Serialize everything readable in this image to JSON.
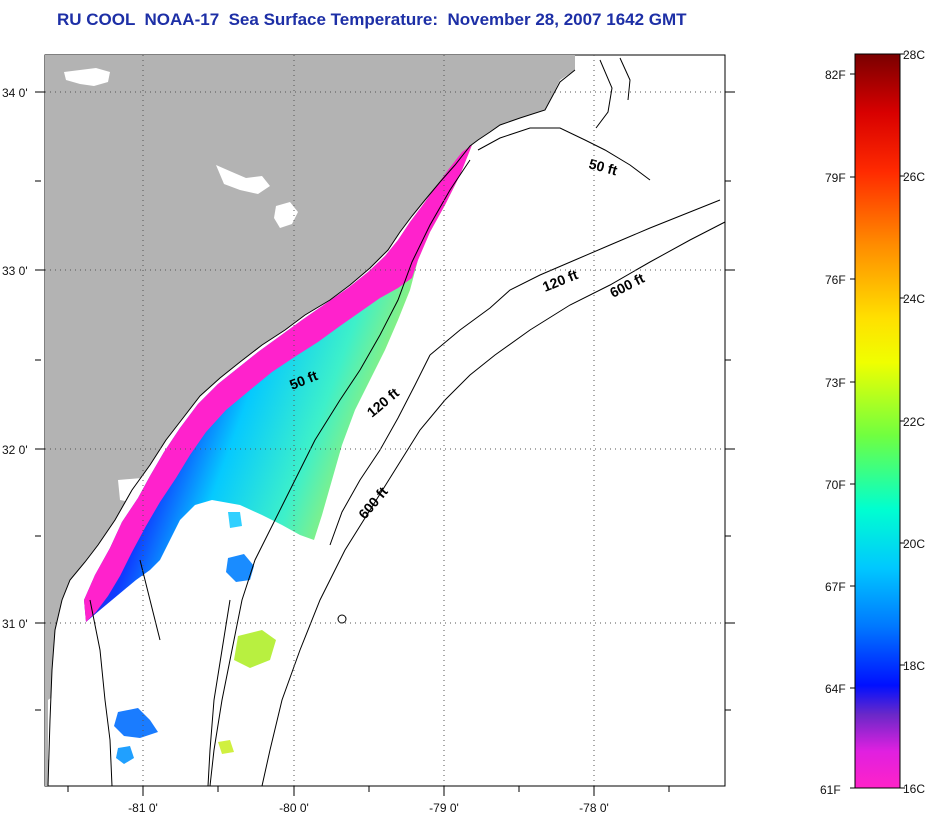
{
  "title": "RU COOL  NOAA-17  Sea Surface Temperature:  November 28, 2007 1642 GMT",
  "lat_labels": [
    "34 0'",
    "33 0'",
    "32 0'",
    "31 0'"
  ],
  "lon_labels": [
    "-81 0'",
    "-80 0'",
    "-79 0'",
    "-78 0'"
  ],
  "contour_labels": [
    "50 ft",
    "120 ft",
    "600 ft",
    "50 ft",
    "120 ft",
    "600 ft"
  ],
  "colorbar": {
    "fahrenheit": [
      "82F",
      "79F",
      "76F",
      "73F",
      "70F",
      "67F",
      "64F",
      "61F"
    ],
    "celsius": [
      "28C",
      "26C",
      "24C",
      "22C",
      "20C",
      "18C",
      "16C"
    ]
  },
  "colors": {
    "title": "#1d2fa6",
    "land": "#b3b3b3",
    "water": "#ffffff"
  }
}
